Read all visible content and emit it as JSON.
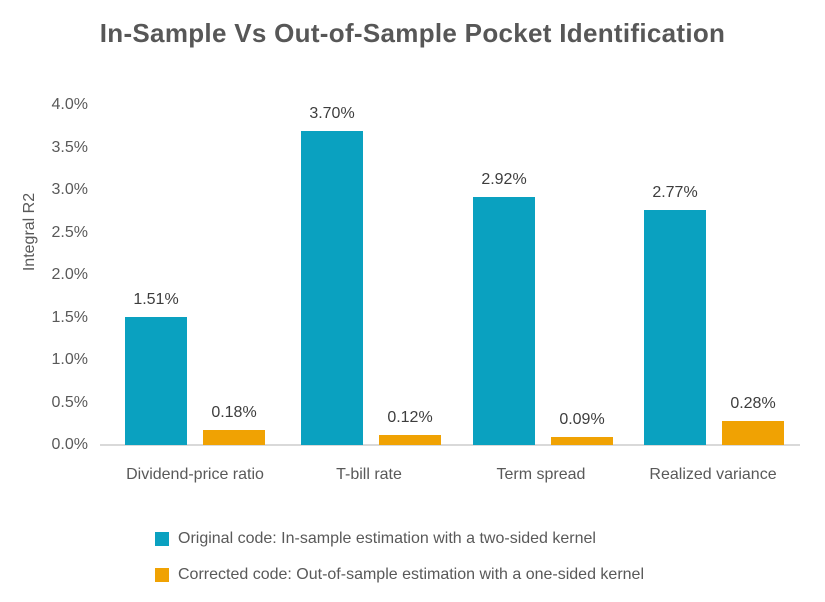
{
  "chart_data": {
    "type": "bar",
    "title": "In-Sample Vs Out-of-Sample Pocket Identification",
    "ylabel": "Integral R2",
    "xlabel": "",
    "ylim": [
      0,
      4.0
    ],
    "ytick_labels": [
      "0.0%",
      "0.5%",
      "1.0%",
      "1.5%",
      "2.0%",
      "2.5%",
      "3.0%",
      "3.5%",
      "4.0%"
    ],
    "grid": false,
    "legend_position": "bottom-left",
    "categories": [
      "Dividend-price ratio",
      "T-bill rate",
      "Term spread",
      "Realized variance"
    ],
    "series": [
      {
        "name": "Original code: In-sample estimation with a two-sided kernel",
        "color": "#0aa1c0",
        "values": [
          1.51,
          3.7,
          2.92,
          2.77
        ],
        "value_labels": [
          "1.51%",
          "3.70%",
          "2.92%",
          "2.77%"
        ]
      },
      {
        "name": "Corrected code: Out-of-sample estimation with a one-sided kernel",
        "color": "#f0a203",
        "values": [
          0.18,
          0.12,
          0.09,
          0.28
        ],
        "value_labels": [
          "0.18%",
          "0.12%",
          "0.09%",
          "0.28%"
        ]
      }
    ],
    "colors": {
      "axis_line": "#d9d9d9",
      "axis_text": "#595959",
      "title_text": "#575757",
      "value_label_text": "#3d3d3d"
    }
  }
}
